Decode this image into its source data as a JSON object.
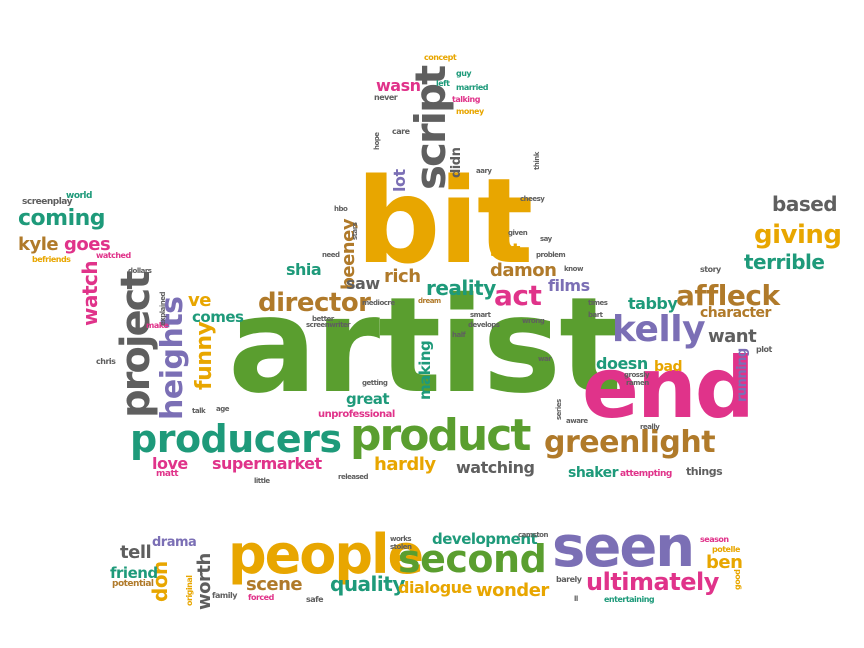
{
  "palette": {
    "green": "#5a9e2f",
    "orange": "#e8a600",
    "pink": "#e0338a",
    "purple": "#7b6fb5",
    "teal": "#1e9a7a",
    "gray": "#5f5f5f",
    "brown": "#b07a2a"
  },
  "words": [
    {
      "text": "artist",
      "color": "green"
    },
    {
      "text": "bit",
      "color": "orange"
    },
    {
      "text": "end",
      "color": "pink"
    },
    {
      "text": "people",
      "color": "orange"
    },
    {
      "text": "seen",
      "color": "purple"
    },
    {
      "text": "product",
      "color": "green"
    },
    {
      "text": "producers",
      "color": "teal"
    },
    {
      "text": "second",
      "color": "green"
    },
    {
      "text": "greenlight",
      "color": "brown"
    },
    {
      "text": "affleck",
      "color": "brown"
    },
    {
      "text": "kelly",
      "color": "purple"
    },
    {
      "text": "director",
      "color": "brown"
    },
    {
      "text": "project",
      "color": "gray"
    },
    {
      "text": "heights",
      "color": "purple"
    },
    {
      "text": "script",
      "color": "gray"
    },
    {
      "text": "act",
      "color": "pink"
    },
    {
      "text": "giving",
      "color": "orange"
    },
    {
      "text": "based",
      "color": "gray"
    },
    {
      "text": "terrible",
      "color": "teal"
    },
    {
      "text": "coming",
      "color": "teal"
    },
    {
      "text": "kyle",
      "color": "brown"
    },
    {
      "text": "goes",
      "color": "pink"
    },
    {
      "text": "ultimately",
      "color": "pink"
    },
    {
      "text": "quality",
      "color": "teal"
    },
    {
      "text": "dialogue",
      "color": "orange"
    },
    {
      "text": "wonder",
      "color": "orange"
    },
    {
      "text": "development",
      "color": "teal"
    },
    {
      "text": "scene",
      "color": "brown"
    },
    {
      "text": "worth",
      "color": "gray"
    },
    {
      "text": "don",
      "color": "orange"
    },
    {
      "text": "drama",
      "color": "purple"
    },
    {
      "text": "tell",
      "color": "gray"
    },
    {
      "text": "friend",
      "color": "teal"
    },
    {
      "text": "potential",
      "color": "brown"
    },
    {
      "text": "ben",
      "color": "orange"
    },
    {
      "text": "supermarket",
      "color": "pink"
    },
    {
      "text": "love",
      "color": "pink"
    },
    {
      "text": "hardly",
      "color": "orange"
    },
    {
      "text": "watching",
      "color": "gray"
    },
    {
      "text": "shaker",
      "color": "teal"
    },
    {
      "text": "funny",
      "color": "orange"
    },
    {
      "text": "ve",
      "color": "orange"
    },
    {
      "text": "comes",
      "color": "teal"
    },
    {
      "text": "watch",
      "color": "pink"
    },
    {
      "text": "making",
      "color": "teal"
    },
    {
      "text": "great",
      "color": "teal"
    },
    {
      "text": "reality",
      "color": "teal"
    },
    {
      "text": "films",
      "color": "purple"
    },
    {
      "text": "damon",
      "color": "brown"
    },
    {
      "text": "rich",
      "color": "brown"
    },
    {
      "text": "set",
      "color": "orange"
    },
    {
      "text": "beeney",
      "color": "brown"
    },
    {
      "text": "shia",
      "color": "teal"
    },
    {
      "text": "saw",
      "color": "gray"
    },
    {
      "text": "lot",
      "color": "purple"
    },
    {
      "text": "didn",
      "color": "gray"
    },
    {
      "text": "wasn",
      "color": "pink"
    },
    {
      "text": "tabby",
      "color": "teal"
    },
    {
      "text": "character",
      "color": "brown"
    },
    {
      "text": "want",
      "color": "gray"
    },
    {
      "text": "doesn",
      "color": "teal"
    },
    {
      "text": "bad",
      "color": "orange"
    },
    {
      "text": "running",
      "color": "purple"
    },
    {
      "text": "things",
      "color": "gray"
    },
    {
      "text": "attempting",
      "color": "pink"
    },
    {
      "text": "unprofessional",
      "color": "pink"
    },
    {
      "text": "matt",
      "color": "pink"
    },
    {
      "text": "screenplay",
      "color": "gray"
    },
    {
      "text": "world",
      "color": "teal"
    },
    {
      "text": "befriends",
      "color": "orange"
    },
    {
      "text": "watched",
      "color": "pink"
    },
    {
      "text": "concept",
      "color": "orange"
    },
    {
      "text": "guy",
      "color": "teal"
    },
    {
      "text": "left",
      "color": "teal"
    },
    {
      "text": "married",
      "color": "teal"
    },
    {
      "text": "talking",
      "color": "pink"
    },
    {
      "text": "money",
      "color": "orange"
    },
    {
      "text": "never",
      "color": "gray"
    },
    {
      "text": "care",
      "color": "gray"
    },
    {
      "text": "story",
      "color": "gray"
    },
    {
      "text": "plot",
      "color": "gray"
    },
    {
      "text": "entertaining",
      "color": "teal"
    },
    {
      "text": "family",
      "color": "gray"
    },
    {
      "text": "forced",
      "color": "pink"
    },
    {
      "text": "safe",
      "color": "gray"
    },
    {
      "text": "original",
      "color": "orange"
    },
    {
      "text": "barely",
      "color": "gray"
    },
    {
      "text": "season",
      "color": "pink"
    },
    {
      "text": "potelle",
      "color": "orange"
    },
    {
      "text": "good",
      "color": "orange"
    },
    {
      "text": "chris",
      "color": "gray"
    },
    {
      "text": "make",
      "color": "pink"
    },
    {
      "text": "explained",
      "color": "gray"
    },
    {
      "text": "dollars",
      "color": "gray"
    },
    {
      "text": "age",
      "color": "gray"
    },
    {
      "text": "talk",
      "color": "gray"
    },
    {
      "text": "getting",
      "color": "gray"
    },
    {
      "text": "mediocre",
      "color": "gray"
    },
    {
      "text": "dream",
      "color": "brown"
    },
    {
      "text": "smart",
      "color": "gray"
    },
    {
      "text": "develops",
      "color": "gray"
    },
    {
      "text": "half",
      "color": "gray"
    },
    {
      "text": "screenwriter",
      "color": "gray"
    },
    {
      "text": "hbo",
      "color": "gray"
    },
    {
      "text": "need",
      "color": "gray"
    },
    {
      "text": "stars",
      "color": "gray"
    },
    {
      "text": "better",
      "color": "gray"
    },
    {
      "text": "say",
      "color": "gray"
    },
    {
      "text": "problem",
      "color": "gray"
    },
    {
      "text": "given",
      "color": "gray"
    },
    {
      "text": "cheesy",
      "color": "gray"
    },
    {
      "text": "know",
      "color": "gray"
    },
    {
      "text": "times",
      "color": "gray"
    },
    {
      "text": "bart",
      "color": "gray"
    },
    {
      "text": "wrong",
      "color": "gray"
    },
    {
      "text": "war",
      "color": "gray"
    },
    {
      "text": "grossly",
      "color": "gray"
    },
    {
      "text": "ramen",
      "color": "gray"
    },
    {
      "text": "really",
      "color": "gray"
    },
    {
      "text": "little",
      "color": "gray"
    },
    {
      "text": "released",
      "color": "gray"
    },
    {
      "text": "series",
      "color": "gray"
    },
    {
      "text": "aware",
      "color": "gray"
    },
    {
      "text": "works",
      "color": "gray"
    },
    {
      "text": "stolen",
      "color": "gray"
    },
    {
      "text": "camston",
      "color": "gray"
    },
    {
      "text": "ll",
      "color": "gray"
    },
    {
      "text": "hope",
      "color": "gray"
    },
    {
      "text": "think",
      "color": "gray"
    },
    {
      "text": "story2",
      "color": "gray"
    }
  ]
}
